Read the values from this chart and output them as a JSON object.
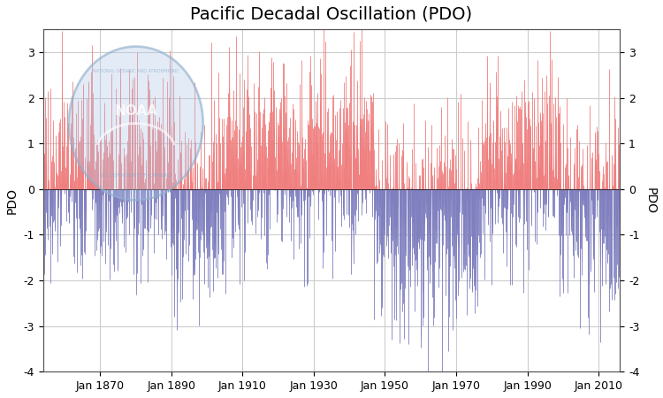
{
  "title": "Pacific Decadal Oscillation (PDO)",
  "ylabel_left": "PDO",
  "ylabel_right": "PDO",
  "ylim": [
    -4.0,
    3.5
  ],
  "yticks": [
    -4.0,
    -3.0,
    -2.0,
    -1.0,
    0.0,
    1.0,
    2.0,
    3.0
  ],
  "color_positive": "#F08080",
  "color_negative": "#8080C0",
  "background_color": "#ffffff",
  "grid_color": "#cccccc",
  "start_year": 1854,
  "end_year": 2015,
  "xtick_years": [
    1870,
    1890,
    1910,
    1930,
    1950,
    1970,
    1990,
    2010
  ],
  "title_fontsize": 14,
  "noaa_logo_color": "#B0C8E8",
  "noaa_logo_alpha": 0.35,
  "xlim_left": 1854,
  "xlim_right": 2016
}
